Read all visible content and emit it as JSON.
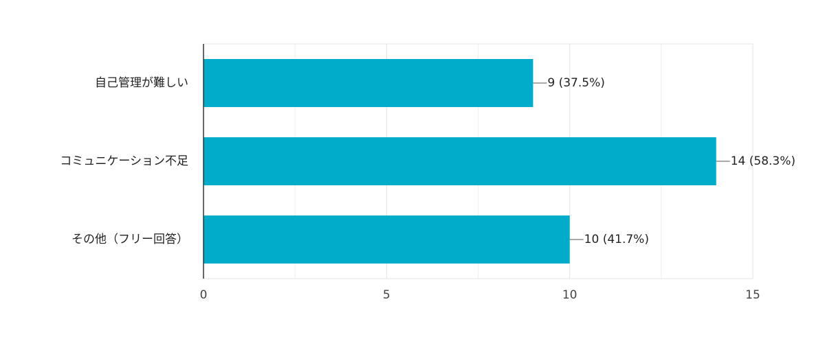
{
  "chart_data": {
    "type": "bar",
    "orientation": "horizontal",
    "categories": [
      "自己管理が難しい",
      "コミュニケーション不足",
      "その他（フリー回答）"
    ],
    "values": [
      9,
      14,
      10
    ],
    "value_labels": [
      "9 (37.5%)",
      "14 (58.3%)",
      "10 (41.7%)"
    ],
    "color": "#00acc9",
    "xlim": [
      0,
      15
    ],
    "xticks": [
      0,
      5,
      10,
      15
    ],
    "minor_gridlines": [
      2.5,
      7.5,
      12.5
    ],
    "grid": true
  }
}
